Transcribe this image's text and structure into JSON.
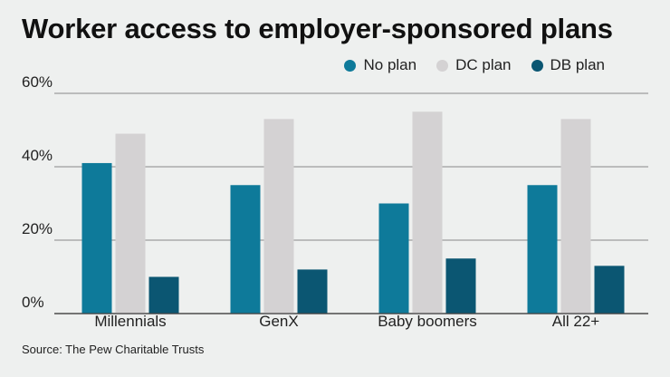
{
  "chart_data": {
    "type": "bar",
    "title": "Worker access to employer-sponsored plans",
    "categories": [
      "Millennials",
      "GenX",
      "Baby boomers",
      "All 22+"
    ],
    "series": [
      {
        "name": "No plan",
        "color": "#0e7a9a",
        "values": [
          41,
          35,
          30,
          35
        ]
      },
      {
        "name": "DC plan",
        "color": "#d4d2d3",
        "values": [
          49,
          53,
          55,
          53
        ]
      },
      {
        "name": "DB plan",
        "color": "#0b5672",
        "values": [
          10,
          12,
          15,
          13
        ]
      }
    ],
    "yticks": [
      "0%",
      "20%",
      "40%",
      "60%"
    ],
    "ylim": [
      0,
      60
    ],
    "xlabel": "",
    "ylabel": "",
    "legend_position": "top-right",
    "source": "Source: The Pew Charitable Trusts"
  }
}
